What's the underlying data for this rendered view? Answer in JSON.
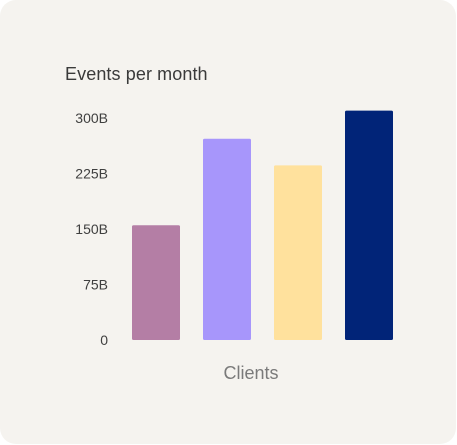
{
  "chart_data": {
    "type": "bar",
    "title": "Events per month",
    "xlabel": "Clients",
    "ylabel": "",
    "categories": [
      "",
      "",
      "",
      ""
    ],
    "values": [
      155,
      272,
      236,
      310
    ],
    "ylim": [
      0,
      300
    ],
    "y_ticks": [
      {
        "value": 0,
        "label": "0"
      },
      {
        "value": 75,
        "label": "75B"
      },
      {
        "value": 150,
        "label": "150B"
      },
      {
        "value": 225,
        "label": "225B"
      },
      {
        "value": 300,
        "label": "300B"
      }
    ],
    "colors": [
      "#b47ea5",
      "#a796fb",
      "#ffe19d",
      "#012478"
    ],
    "grid": false,
    "legend": "none"
  }
}
